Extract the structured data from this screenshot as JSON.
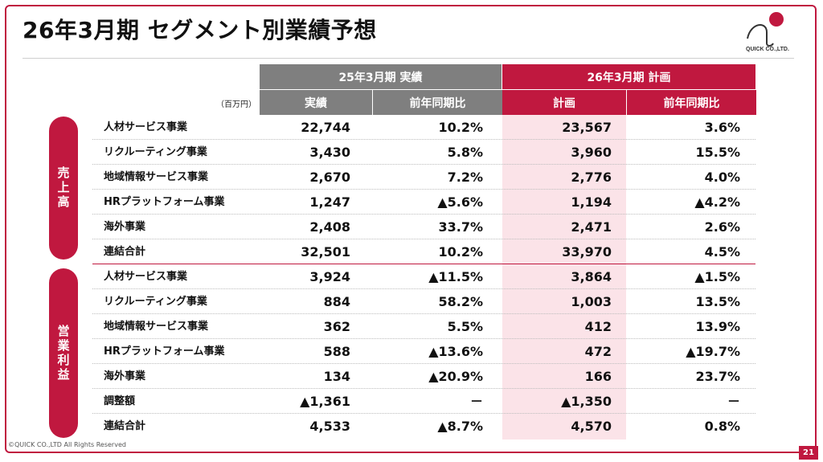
{
  "title": "26年3月期 セグメント別業績予想",
  "logo": {
    "text": "QUICK CO.,LTD."
  },
  "unit": "（百万円）",
  "headers": {
    "group_actual": "25年3月期 実績",
    "group_plan": "26年3月期 計画",
    "actual": "実績",
    "yoy": "前年同期比",
    "plan": "計画",
    "plan_yoy": "前年同期比"
  },
  "sections": {
    "sales": "売上高",
    "op_income": "営業利益"
  },
  "sales_rows": [
    {
      "label": "人材サービス事業",
      "actual": "22,744",
      "yoy": "10.2%",
      "plan": "23,567",
      "plan_yoy": "3.6%"
    },
    {
      "label": "リクルーティング事業",
      "actual": "3,430",
      "yoy": "5.8%",
      "plan": "3,960",
      "plan_yoy": "15.5%"
    },
    {
      "label": "地域情報サービス事業",
      "actual": "2,670",
      "yoy": "7.2%",
      "plan": "2,776",
      "plan_yoy": "4.0%"
    },
    {
      "label": "HRプラットフォーム事業",
      "actual": "1,247",
      "yoy": "▲5.6%",
      "plan": "1,194",
      "plan_yoy": "▲4.2%"
    },
    {
      "label": "海外事業",
      "actual": "2,408",
      "yoy": "33.7%",
      "plan": "2,471",
      "plan_yoy": "2.6%"
    },
    {
      "label": "連結合計",
      "actual": "32,501",
      "yoy": "10.2%",
      "plan": "33,970",
      "plan_yoy": "4.5%"
    }
  ],
  "op_rows": [
    {
      "label": "人材サービス事業",
      "actual": "3,924",
      "yoy": "▲11.5%",
      "plan": "3,864",
      "plan_yoy": "▲1.5%"
    },
    {
      "label": "リクルーティング事業",
      "actual": "884",
      "yoy": "58.2%",
      "plan": "1,003",
      "plan_yoy": "13.5%"
    },
    {
      "label": "地域情報サービス事業",
      "actual": "362",
      "yoy": "5.5%",
      "plan": "412",
      "plan_yoy": "13.9%"
    },
    {
      "label": "HRプラットフォーム事業",
      "actual": "588",
      "yoy": "▲13.6%",
      "plan": "472",
      "plan_yoy": "▲19.7%"
    },
    {
      "label": "海外事業",
      "actual": "134",
      "yoy": "▲20.9%",
      "plan": "166",
      "plan_yoy": "23.7%"
    },
    {
      "label": "調整額",
      "actual": "▲1,361",
      "yoy": "－",
      "plan": "▲1,350",
      "plan_yoy": "－"
    },
    {
      "label": "連結合計",
      "actual": "4,533",
      "yoy": "▲8.7%",
      "plan": "4,570",
      "plan_yoy": "0.8%"
    }
  ],
  "footer": {
    "copyright": "©QUICK CO.,LTD All Rights Reserved",
    "page": "21"
  },
  "colors": {
    "accent": "#c0183f",
    "header_gray": "#7f7f7f",
    "plan_bg": "#fbe3e8"
  }
}
